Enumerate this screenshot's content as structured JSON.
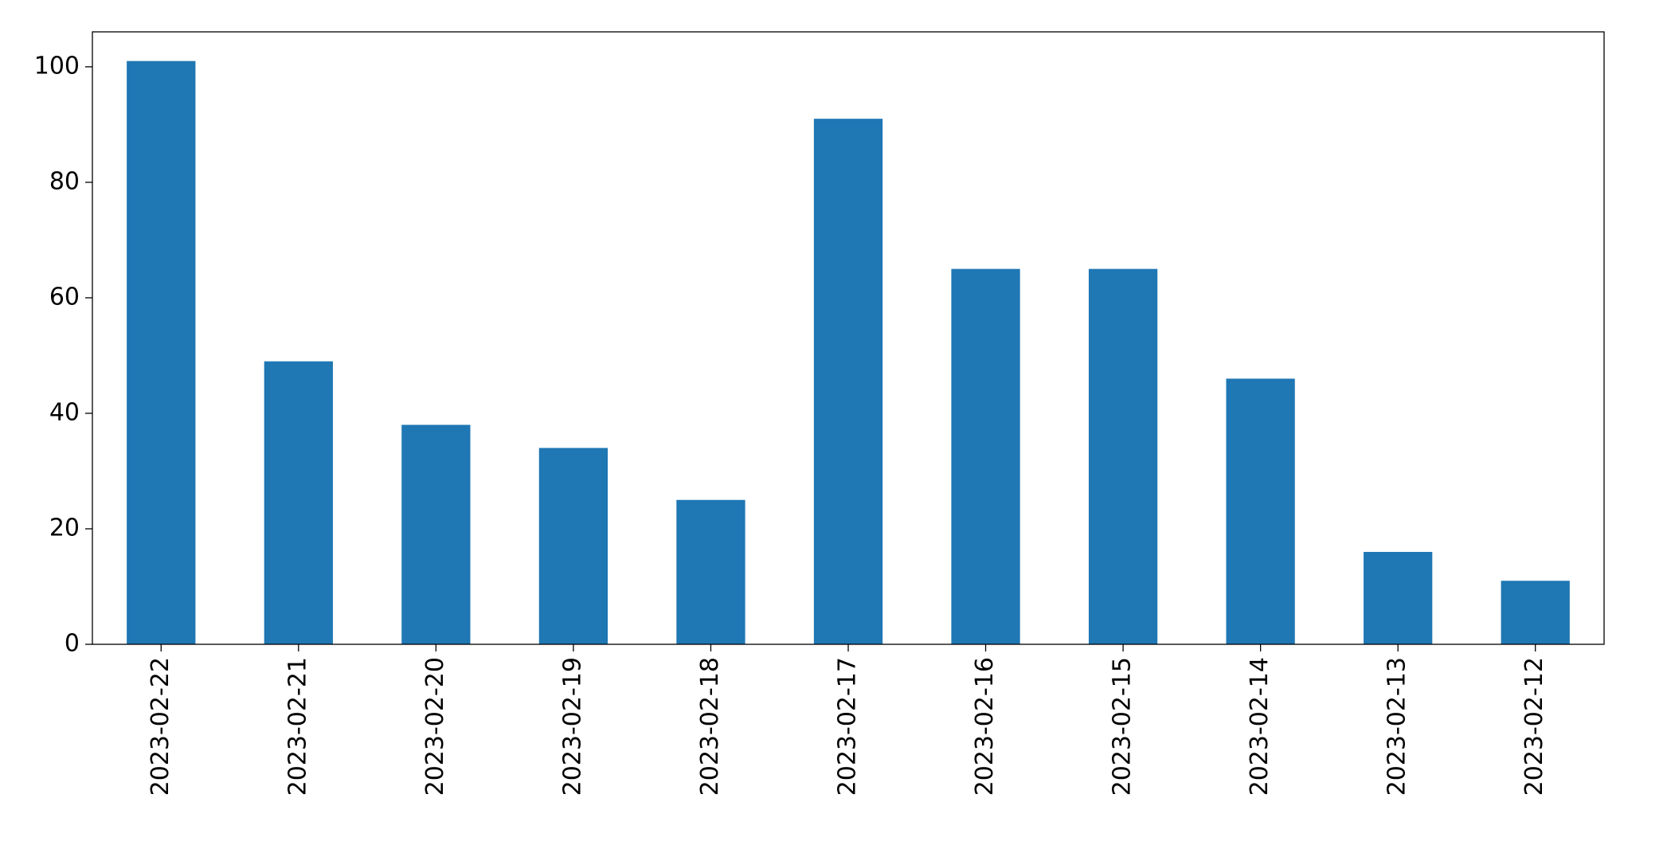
{
  "chart_data": {
    "type": "bar",
    "categories": [
      "2023-02-22",
      "2023-02-21",
      "2023-02-20",
      "2023-02-19",
      "2023-02-18",
      "2023-02-17",
      "2023-02-16",
      "2023-02-15",
      "2023-02-14",
      "2023-02-13",
      "2023-02-12"
    ],
    "values": [
      101,
      49,
      38,
      34,
      25,
      91,
      65,
      65,
      46,
      16,
      11
    ],
    "color": "#1f77b4",
    "ylim": [
      0,
      106.05
    ],
    "yticks": [
      0,
      20,
      40,
      60,
      80,
      100
    ],
    "grid": false
  }
}
